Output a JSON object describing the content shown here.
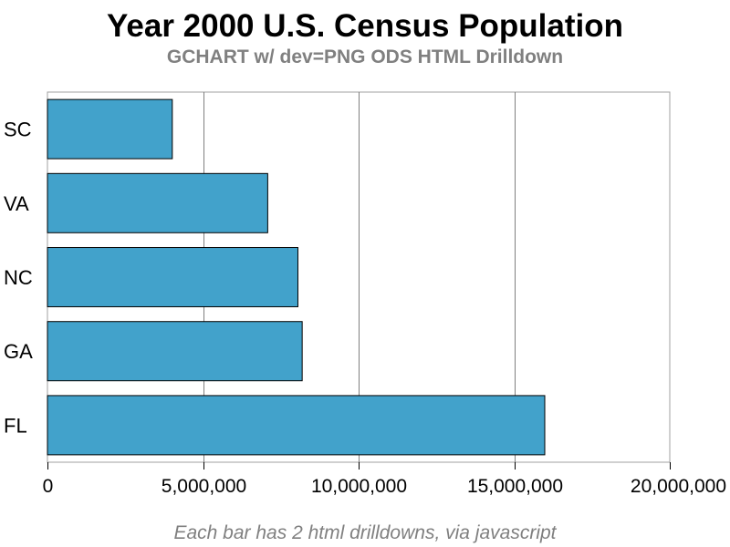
{
  "chart_data": {
    "type": "bar",
    "orientation": "horizontal",
    "title": "Year 2000 U.S. Census Population",
    "subtitle": "GCHART w/ dev=PNG ODS HTML Drilldown",
    "footnote": "Each bar has 2 html drilldowns, via javascript",
    "categories": [
      "SC",
      "VA",
      "NC",
      "GA",
      "FL"
    ],
    "values": [
      4012012,
      7078515,
      8049313,
      8186453,
      15982378
    ],
    "xlim": [
      0,
      20000000
    ],
    "xticks": [
      0,
      5000000,
      10000000,
      15000000,
      20000000
    ],
    "xtick_labels": [
      "0",
      "5,000,000",
      "10,000,000",
      "15,000,000",
      "20,000,000"
    ],
    "xlabel": "",
    "ylabel": "",
    "grid": "vertical",
    "legend": "none",
    "colors": {
      "bar_fill": "#42A2CB",
      "bar_stroke": "#000000",
      "grid": "#808080",
      "frame": "#a0a0a0",
      "title": "#000000",
      "subtitle": "#808080",
      "footnote": "#808080"
    }
  }
}
